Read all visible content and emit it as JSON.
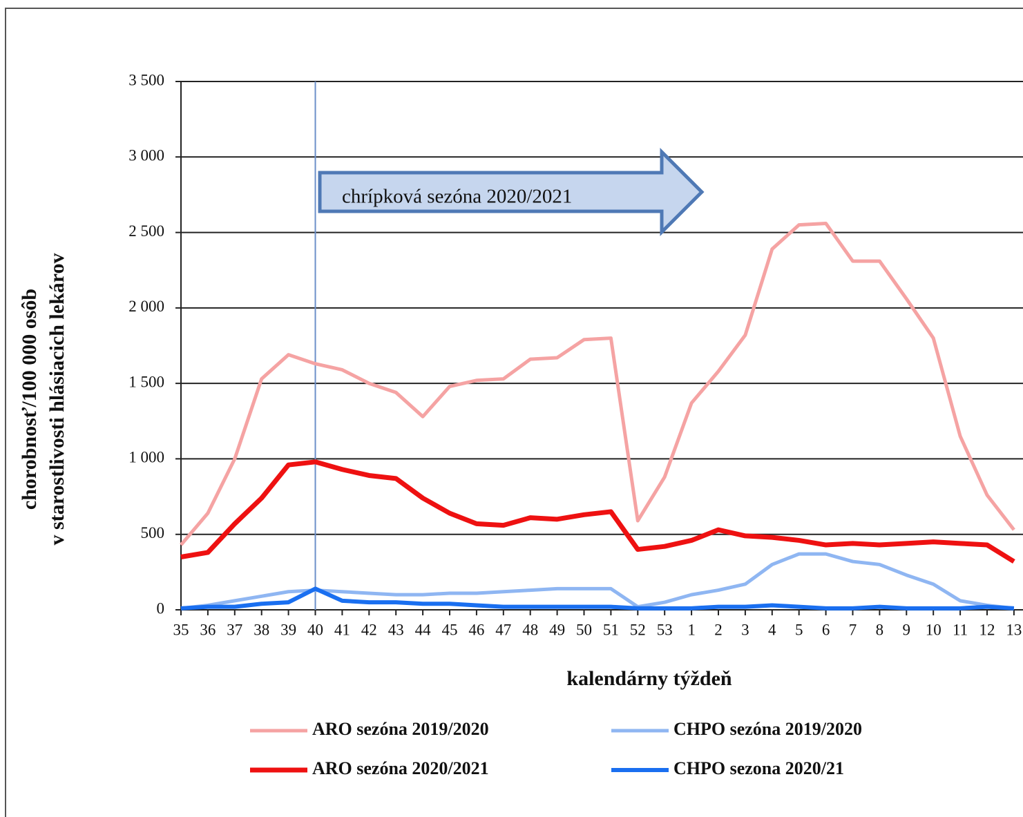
{
  "chart_data": {
    "type": "line",
    "x_label": "kalendárny týždeň",
    "y_label": [
      "chorobnosť/100 000 osôb",
      "v starostlivosti hlásiacich lekárov"
    ],
    "annotation": "chrípková sezóna 2020/2021",
    "vline_category": "40",
    "categories": [
      "35",
      "36",
      "37",
      "38",
      "39",
      "40",
      "41",
      "42",
      "43",
      "44",
      "45",
      "46",
      "47",
      "48",
      "49",
      "50",
      "51",
      "52",
      "53",
      "1",
      "2",
      "3",
      "4",
      "5",
      "6",
      "7",
      "8",
      "9",
      "10",
      "11",
      "12",
      "13"
    ],
    "series": [
      {
        "name": "ARO sezóna 2019/2020",
        "color": "#f5a3a3",
        "width": 5,
        "values": [
          430,
          640,
          1000,
          1530,
          1690,
          1630,
          1590,
          1500,
          1440,
          1280,
          1480,
          1520,
          1530,
          1660,
          1670,
          1790,
          1800,
          590,
          880,
          1370,
          1580,
          1820,
          2390,
          2550,
          2560,
          2310,
          2310,
          2060,
          1800,
          1150,
          760,
          530
        ]
      },
      {
        "name": "ARO sezóna 2020/2021",
        "color": "#ee1111",
        "width": 7,
        "values": [
          350,
          380,
          570,
          740,
          960,
          980,
          930,
          890,
          870,
          740,
          640,
          570,
          560,
          610,
          600,
          630,
          650,
          400,
          420,
          460,
          530,
          490,
          480,
          460,
          430,
          440,
          430,
          440,
          450,
          440,
          430,
          320
        ]
      },
      {
        "name": "CHPO sezóna 2019/2020",
        "color": "#8fb6f2",
        "width": 5,
        "values": [
          10,
          30,
          60,
          90,
          120,
          130,
          120,
          110,
          100,
          100,
          110,
          110,
          120,
          130,
          140,
          140,
          140,
          20,
          50,
          100,
          130,
          170,
          300,
          370,
          370,
          320,
          300,
          230,
          170,
          60,
          30,
          10
        ]
      },
      {
        "name": "CHPO sezona 2020/21",
        "color": "#1a6ff0",
        "width": 6,
        "values": [
          10,
          20,
          20,
          40,
          50,
          140,
          60,
          50,
          50,
          40,
          40,
          30,
          20,
          20,
          20,
          20,
          20,
          10,
          10,
          10,
          20,
          20,
          30,
          20,
          10,
          10,
          20,
          10,
          10,
          10,
          20,
          10
        ]
      }
    ],
    "ylim": [
      0,
      3500
    ],
    "yticks": [
      0,
      500,
      {
        "value": 1000,
        "label": "1 000"
      },
      {
        "value": 1500,
        "label": "1 500"
      },
      {
        "value": 2000,
        "label": "2 000"
      },
      {
        "value": 2500,
        "label": "2 500"
      },
      {
        "value": 3000,
        "label": "3 000"
      },
      {
        "value": 3500,
        "label": "3 500"
      }
    ],
    "grid": true
  }
}
